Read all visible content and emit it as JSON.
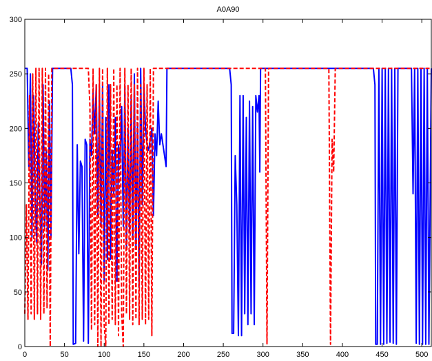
{
  "chart_data": {
    "type": "line",
    "title": "A0A90",
    "xlabel": "",
    "ylabel": "",
    "xlim": [
      0,
      512
    ],
    "ylim": [
      0,
      300
    ],
    "xticks": [
      0,
      50,
      100,
      150,
      200,
      250,
      300,
      350,
      400,
      450,
      500
    ],
    "yticks": [
      0,
      50,
      100,
      150,
      200,
      250,
      300
    ],
    "grid": false,
    "legend": null,
    "series": [
      {
        "color": "#0000ff",
        "style": "solid",
        "points": [
          [
            0,
            255
          ],
          [
            3,
            255
          ],
          [
            5,
            165
          ],
          [
            7,
            250
          ],
          [
            9,
            100
          ],
          [
            11,
            230
          ],
          [
            13,
            140
          ],
          [
            15,
            95
          ],
          [
            17,
            205
          ],
          [
            19,
            130
          ],
          [
            21,
            75
          ],
          [
            23,
            240
          ],
          [
            25,
            110
          ],
          [
            27,
            180
          ],
          [
            29,
            70
          ],
          [
            31,
            225
          ],
          [
            33,
            100
          ],
          [
            35,
            255
          ],
          [
            58,
            255
          ],
          [
            60,
            240
          ],
          [
            61,
            2
          ],
          [
            64,
            3
          ],
          [
            66,
            185
          ],
          [
            68,
            85
          ],
          [
            70,
            170
          ],
          [
            72,
            165
          ],
          [
            74,
            5
          ],
          [
            76,
            190
          ],
          [
            78,
            185
          ],
          [
            80,
            3
          ],
          [
            82,
            190
          ],
          [
            84,
            175
          ],
          [
            86,
            235
          ],
          [
            88,
            195
          ],
          [
            90,
            240
          ],
          [
            92,
            120
          ],
          [
            94,
            240
          ],
          [
            96,
            110
          ],
          [
            98,
            240
          ],
          [
            100,
            60
          ],
          [
            102,
            210
          ],
          [
            104,
            80
          ],
          [
            106,
            240
          ],
          [
            108,
            80
          ],
          [
            110,
            180
          ],
          [
            112,
            140
          ],
          [
            114,
            210
          ],
          [
            116,
            60
          ],
          [
            118,
            185
          ],
          [
            120,
            170
          ],
          [
            122,
            220
          ],
          [
            124,
            110
          ],
          [
            126,
            240
          ],
          [
            128,
            90
          ],
          [
            130,
            200
          ],
          [
            132,
            105
          ],
          [
            134,
            230
          ],
          [
            136,
            100
          ],
          [
            138,
            250
          ],
          [
            140,
            90
          ],
          [
            142,
            205
          ],
          [
            144,
            55
          ],
          [
            146,
            255
          ],
          [
            148,
            130
          ],
          [
            150,
            240
          ],
          [
            152,
            200
          ],
          [
            154,
            185
          ],
          [
            156,
            180
          ],
          [
            158,
            190
          ],
          [
            160,
            200
          ],
          [
            162,
            120
          ],
          [
            164,
            195
          ],
          [
            166,
            175
          ],
          [
            168,
            225
          ],
          [
            170,
            185
          ],
          [
            172,
            195
          ],
          [
            174,
            185
          ],
          [
            176,
            175
          ],
          [
            178,
            165
          ],
          [
            179,
            255
          ],
          [
            258,
            255
          ],
          [
            260,
            240
          ],
          [
            261,
            12
          ],
          [
            263,
            12
          ],
          [
            265,
            175
          ],
          [
            267,
            130
          ],
          [
            269,
            10
          ],
          [
            271,
            230
          ],
          [
            273,
            10
          ],
          [
            275,
            230
          ],
          [
            277,
            30
          ],
          [
            279,
            210
          ],
          [
            281,
            20
          ],
          [
            283,
            225
          ],
          [
            285,
            30
          ],
          [
            287,
            220
          ],
          [
            289,
            20
          ],
          [
            291,
            230
          ],
          [
            293,
            215
          ],
          [
            295,
            230
          ],
          [
            296,
            160
          ],
          [
            297,
            255
          ],
          [
            439,
            255
          ],
          [
            441,
            240
          ],
          [
            442,
            2
          ],
          [
            444,
            2
          ],
          [
            446,
            255
          ],
          [
            448,
            2
          ],
          [
            450,
            255
          ],
          [
            452,
            2
          ],
          [
            454,
            255
          ],
          [
            456,
            3
          ],
          [
            458,
            255
          ],
          [
            460,
            4
          ],
          [
            462,
            255
          ],
          [
            464,
            3
          ],
          [
            466,
            255
          ],
          [
            468,
            2
          ],
          [
            470,
            255
          ],
          [
            487,
            255
          ],
          [
            489,
            140
          ],
          [
            491,
            255
          ],
          [
            493,
            3
          ],
          [
            495,
            255
          ],
          [
            497,
            2
          ],
          [
            499,
            255
          ],
          [
            501,
            2
          ],
          [
            503,
            255
          ],
          [
            505,
            2
          ],
          [
            507,
            255
          ],
          [
            509,
            2
          ],
          [
            512,
            255
          ]
        ]
      },
      {
        "color": "#ff0000",
        "style": "dashed",
        "points": [
          [
            0,
            30
          ],
          [
            2,
            130
          ],
          [
            4,
            25
          ],
          [
            6,
            230
          ],
          [
            8,
            30
          ],
          [
            10,
            250
          ],
          [
            12,
            25
          ],
          [
            14,
            255
          ],
          [
            16,
            30
          ],
          [
            18,
            255
          ],
          [
            20,
            25
          ],
          [
            22,
            255
          ],
          [
            24,
            30
          ],
          [
            26,
            255
          ],
          [
            28,
            35
          ],
          [
            30,
            250
          ],
          [
            32,
            0
          ],
          [
            34,
            255
          ],
          [
            80,
            255
          ],
          [
            82,
            220
          ],
          [
            84,
            15
          ],
          [
            86,
            255
          ],
          [
            88,
            20
          ],
          [
            90,
            240
          ],
          [
            92,
            0
          ],
          [
            94,
            255
          ],
          [
            96,
            0
          ],
          [
            98,
            255
          ],
          [
            100,
            20
          ],
          [
            102,
            0
          ],
          [
            104,
            255
          ],
          [
            106,
            20
          ],
          [
            108,
            240
          ],
          [
            110,
            25
          ],
          [
            112,
            255
          ],
          [
            114,
            20
          ],
          [
            116,
            240
          ],
          [
            118,
            10
          ],
          [
            120,
            255
          ],
          [
            122,
            30
          ],
          [
            124,
            0
          ],
          [
            126,
            255
          ],
          [
            128,
            30
          ],
          [
            130,
            240
          ],
          [
            132,
            25
          ],
          [
            134,
            255
          ],
          [
            136,
            20
          ],
          [
            138,
            240
          ],
          [
            140,
            25
          ],
          [
            142,
            255
          ],
          [
            144,
            20
          ],
          [
            146,
            240
          ],
          [
            148,
            25
          ],
          [
            150,
            255
          ],
          [
            152,
            20
          ],
          [
            154,
            240
          ],
          [
            156,
            25
          ],
          [
            158,
            255
          ],
          [
            160,
            10
          ],
          [
            162,
            255
          ],
          [
            303,
            255
          ],
          [
            305,
            2
          ],
          [
            307,
            255
          ],
          [
            383,
            255
          ],
          [
            385,
            2
          ],
          [
            387,
            190
          ],
          [
            389,
            160
          ],
          [
            391,
            255
          ],
          [
            512,
            255
          ]
        ]
      }
    ]
  }
}
